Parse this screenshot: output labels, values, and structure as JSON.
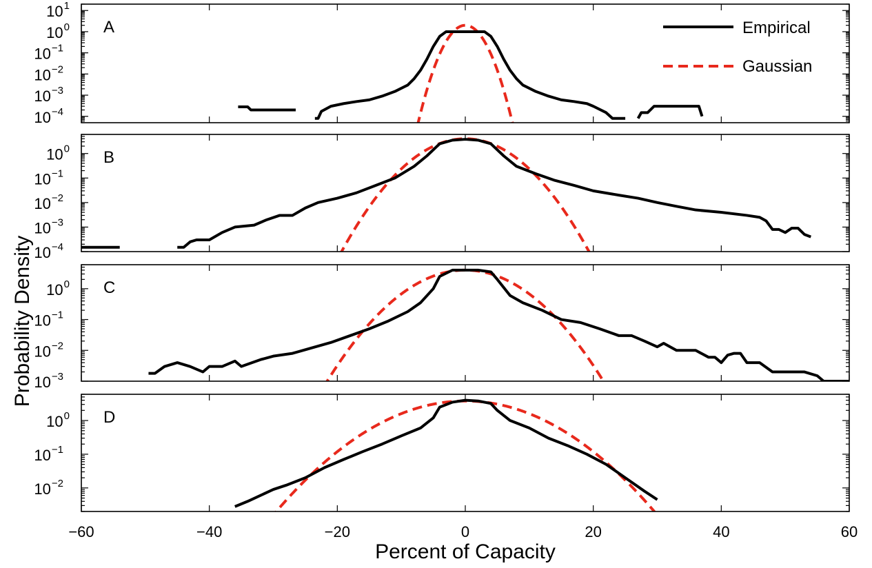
{
  "chart_data": {
    "type": "line",
    "xlabel": "Percent of Capacity",
    "ylabel": "Probability Density",
    "xlim": [
      -60,
      60
    ],
    "xticks": [
      -60,
      -40,
      -20,
      0,
      20,
      40,
      60
    ],
    "xtick_labels": [
      "−60",
      "−40",
      "−20",
      "0",
      "20",
      "40",
      "60"
    ],
    "yscale": "log",
    "grid": false,
    "legend": {
      "placement": "top-right",
      "entries": [
        {
          "name": "Empirical",
          "color": "#000000",
          "style": "solid"
        },
        {
          "name": "Gaussian",
          "color": "#e8291c",
          "style": "dashed"
        }
      ]
    },
    "panels": [
      {
        "label": "A",
        "ylim": [
          5e-05,
          20
        ],
        "yticks": [
          {
            "value": 10,
            "base": "10",
            "exp": "1"
          },
          {
            "value": 1,
            "base": "10",
            "exp": "0"
          },
          {
            "value": 0.1,
            "base": "10",
            "exp": "-1"
          },
          {
            "value": 0.01,
            "base": "10",
            "exp": "-2"
          },
          {
            "value": 0.001,
            "base": "10",
            "exp": "-3"
          },
          {
            "value": 0.0001,
            "base": "10",
            "exp": "-4"
          }
        ],
        "series": [
          {
            "name": "Empirical",
            "segments": [
              [
                [
                  -35.5,
                  0.00028
                ],
                [
                  -34,
                  0.00028
                ],
                [
                  -33.5,
                  0.0002
                ],
                [
                  -30,
                  0.0002
                ],
                [
                  -26.5,
                  0.0002
                ]
              ],
              [
                [
                  -23.5,
                  8e-05
                ],
                [
                  -23,
                  8e-05
                ],
                [
                  -22.5,
                  0.00017
                ],
                [
                  -21,
                  0.0003
                ],
                [
                  -19,
                  0.0004
                ],
                [
                  -17,
                  0.0005
                ],
                [
                  -15,
                  0.0006
                ],
                [
                  -13,
                  0.0009
                ],
                [
                  -11,
                  0.0015
                ],
                [
                  -9,
                  0.003
                ],
                [
                  -8,
                  0.006
                ],
                [
                  -7,
                  0.015
                ],
                [
                  -6,
                  0.05
                ],
                [
                  -5,
                  0.2
                ],
                [
                  -4,
                  0.6
                ],
                [
                  -3,
                  1.0
                ],
                [
                  3,
                  1.0
                ],
                [
                  4,
                  0.6
                ],
                [
                  5,
                  0.2
                ],
                [
                  6,
                  0.05
                ],
                [
                  7,
                  0.015
                ],
                [
                  8,
                  0.006
                ],
                [
                  9,
                  0.003
                ],
                [
                  11,
                  0.0015
                ],
                [
                  13,
                  0.0009
                ],
                [
                  15,
                  0.0006
                ],
                [
                  17,
                  0.0005
                ],
                [
                  19,
                  0.0004
                ],
                [
                  20,
                  0.0003
                ],
                [
                  22,
                  0.00015
                ],
                [
                  23,
                  8e-05
                ],
                [
                  25,
                  8e-05
                ]
              ],
              [
                [
                  27,
                  8e-05
                ],
                [
                  27.5,
                  0.00015
                ],
                [
                  28.5,
                  0.00015
                ],
                [
                  29.5,
                  0.0003
                ],
                [
                  31,
                  0.0003
                ],
                [
                  36.5,
                  0.0003
                ],
                [
                  37,
                  0.0001
                ]
              ]
            ]
          },
          {
            "name": "Gaussian",
            "mu": 0,
            "peak": 2.0,
            "sigma": 1.6
          }
        ]
      },
      {
        "label": "B",
        "ylim": [
          0.0001,
          6
        ],
        "yticks": [
          {
            "value": 1,
            "base": "10",
            "exp": "0"
          },
          {
            "value": 0.1,
            "base": "10",
            "exp": "-1"
          },
          {
            "value": 0.01,
            "base": "10",
            "exp": "-2"
          },
          {
            "value": 0.001,
            "base": "10",
            "exp": "-3"
          },
          {
            "value": 0.0001,
            "base": "10",
            "exp": "-4"
          }
        ],
        "series": [
          {
            "name": "Empirical",
            "segments": [
              [
                [
                  -60,
                  0.00015
                ],
                [
                  -54,
                  0.00015
                ]
              ],
              [
                [
                  -45,
                  0.00015
                ],
                [
                  -44,
                  0.00015
                ],
                [
                  -43,
                  0.00025
                ],
                [
                  -42,
                  0.0003
                ],
                [
                  -40,
                  0.0003
                ],
                [
                  -38,
                  0.0006
                ],
                [
                  -36,
                  0.001
                ],
                [
                  -33,
                  0.0012
                ],
                [
                  -31,
                  0.002
                ],
                [
                  -29,
                  0.003
                ],
                [
                  -27,
                  0.003
                ],
                [
                  -25,
                  0.006
                ],
                [
                  -23,
                  0.01
                ],
                [
                  -20,
                  0.015
                ],
                [
                  -17,
                  0.025
                ],
                [
                  -14,
                  0.05
                ],
                [
                  -11,
                  0.1
                ],
                [
                  -8,
                  0.3
                ],
                [
                  -6,
                  0.8
                ],
                [
                  -4,
                  2.5
                ],
                [
                  -2,
                  3.5
                ],
                [
                  0,
                  3.8
                ],
                [
                  2,
                  3.5
                ],
                [
                  4,
                  2.5
                ],
                [
                  6,
                  0.8
                ],
                [
                  8,
                  0.3
                ],
                [
                  11,
                  0.15
                ],
                [
                  14,
                  0.08
                ],
                [
                  17,
                  0.05
                ],
                [
                  20,
                  0.03
                ],
                [
                  24,
                  0.02
                ],
                [
                  27,
                  0.015
                ],
                [
                  30,
                  0.01
                ],
                [
                  33,
                  0.007
                ],
                [
                  36,
                  0.005
                ],
                [
                  40,
                  0.004
                ],
                [
                  44,
                  0.003
                ],
                [
                  46,
                  0.0025
                ],
                [
                  47,
                  0.0018
                ],
                [
                  48,
                  0.0008
                ],
                [
                  49,
                  0.0008
                ],
                [
                  50,
                  0.0006
                ],
                [
                  51,
                  0.0009
                ],
                [
                  52,
                  0.0009
                ],
                [
                  53,
                  0.0005
                ],
                [
                  54,
                  0.0004
                ]
              ]
            ]
          },
          {
            "name": "Gaussian",
            "mu": 0,
            "peak": 4.0,
            "sigma": 4.2
          }
        ]
      },
      {
        "label": "C",
        "ylim": [
          0.001,
          6
        ],
        "yticks": [
          {
            "value": 1,
            "base": "10",
            "exp": "0"
          },
          {
            "value": 0.1,
            "base": "10",
            "exp": "-1"
          },
          {
            "value": 0.01,
            "base": "10",
            "exp": "-2"
          },
          {
            "value": 0.001,
            "base": "10",
            "exp": "-3"
          }
        ],
        "series": [
          {
            "name": "Empirical",
            "segments": [
              [
                [
                  -49.5,
                  0.0018
                ],
                [
                  -48.5,
                  0.0018
                ],
                [
                  -47,
                  0.003
                ],
                [
                  -45,
                  0.004
                ],
                [
                  -43,
                  0.003
                ],
                [
                  -41,
                  0.002
                ],
                [
                  -40,
                  0.003
                ],
                [
                  -38,
                  0.003
                ],
                [
                  -36,
                  0.0045
                ],
                [
                  -35,
                  0.003
                ],
                [
                  -32,
                  0.005
                ],
                [
                  -30,
                  0.0065
                ],
                [
                  -27,
                  0.008
                ],
                [
                  -24,
                  0.012
                ],
                [
                  -21,
                  0.018
                ],
                [
                  -18,
                  0.03
                ],
                [
                  -15,
                  0.05
                ],
                [
                  -12,
                  0.09
                ],
                [
                  -9,
                  0.18
                ],
                [
                  -7,
                  0.35
                ],
                [
                  -5,
                  1.0
                ],
                [
                  -4,
                  2.5
                ],
                [
                  -2,
                  4.0
                ],
                [
                  0,
                  4.0
                ],
                [
                  2,
                  4.0
                ],
                [
                  4,
                  3.5
                ],
                [
                  5,
                  2.0
                ],
                [
                  7,
                  0.6
                ],
                [
                  9,
                  0.35
                ],
                [
                  12,
                  0.2
                ],
                [
                  15,
                  0.1
                ],
                [
                  18,
                  0.08
                ],
                [
                  21,
                  0.05
                ],
                [
                  24,
                  0.03
                ],
                [
                  26,
                  0.03
                ],
                [
                  28,
                  0.02
                ],
                [
                  30,
                  0.013
                ],
                [
                  31,
                  0.017
                ],
                [
                  33,
                  0.01
                ],
                [
                  36,
                  0.01
                ],
                [
                  38,
                  0.006
                ],
                [
                  39,
                  0.006
                ],
                [
                  40,
                  0.004
                ],
                [
                  41,
                  0.007
                ],
                [
                  42,
                  0.008
                ],
                [
                  43,
                  0.008
                ],
                [
                  44,
                  0.004
                ],
                [
                  46,
                  0.004
                ],
                [
                  48,
                  0.002
                ],
                [
                  50,
                  0.002
                ],
                [
                  53,
                  0.002
                ],
                [
                  55,
                  0.0015
                ],
                [
                  56,
                  0.001
                ],
                [
                  61,
                  0.001
                ],
                [
                  67,
                  0.001
                ]
              ]
            ]
          },
          {
            "name": "Gaussian",
            "mu": 0,
            "peak": 4.0,
            "sigma": 5.3
          }
        ]
      },
      {
        "label": "D",
        "ylim": [
          0.002,
          6
        ],
        "yticks": [
          {
            "value": 1,
            "base": "10",
            "exp": "0"
          },
          {
            "value": 0.1,
            "base": "10",
            "exp": "-1"
          },
          {
            "value": 0.01,
            "base": "10",
            "exp": "-2"
          }
        ],
        "series": [
          {
            "name": "Empirical",
            "segments": [
              [
                [
                  -36,
                  0.0028
                ],
                [
                  -34,
                  0.004
                ],
                [
                  -32,
                  0.006
                ],
                [
                  -30,
                  0.009
                ],
                [
                  -28,
                  0.012
                ],
                [
                  -25,
                  0.02
                ],
                [
                  -22,
                  0.04
                ],
                [
                  -19,
                  0.07
                ],
                [
                  -16,
                  0.12
                ],
                [
                  -13,
                  0.2
                ],
                [
                  -10,
                  0.35
                ],
                [
                  -7,
                  0.6
                ],
                [
                  -5,
                  1.2
                ],
                [
                  -4,
                  2.5
                ],
                [
                  -2,
                  3.5
                ],
                [
                  0,
                  4.0
                ],
                [
                  2,
                  3.8
                ],
                [
                  4,
                  3.2
                ],
                [
                  5,
                  2.0
                ],
                [
                  7,
                  1.0
                ],
                [
                  10,
                  0.6
                ],
                [
                  13,
                  0.3
                ],
                [
                  16,
                  0.18
                ],
                [
                  19,
                  0.1
                ],
                [
                  22,
                  0.05
                ],
                [
                  25,
                  0.02
                ],
                [
                  28,
                  0.008
                ],
                [
                  30,
                  0.0045
                ]
              ]
            ]
          },
          {
            "name": "Gaussian",
            "mu": 0,
            "peak": 3.8,
            "sigma": 7.6
          }
        ]
      }
    ]
  }
}
